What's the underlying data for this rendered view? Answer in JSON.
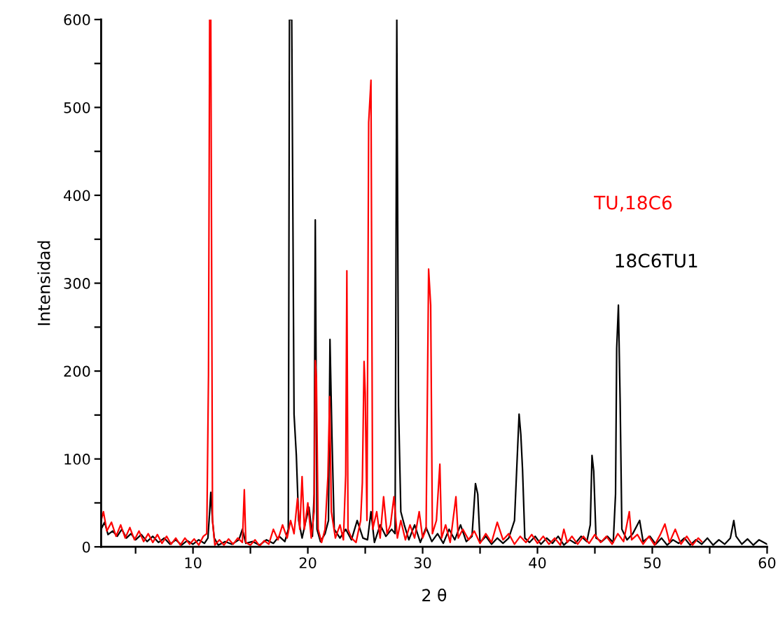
{
  "chart_data": {
    "type": "line",
    "xlabel": "2 θ",
    "ylabel": "Intensidad",
    "xlim": [
      2,
      60
    ],
    "ylim": [
      0,
      600
    ],
    "xticks": [
      {
        "value": 5,
        "label": null
      },
      10,
      {
        "value": 15,
        "label": null
      },
      20,
      {
        "value": 25,
        "label": null
      },
      30,
      {
        "value": 35,
        "label": null
      },
      40,
      {
        "value": 45,
        "label": null
      },
      50,
      {
        "value": 55,
        "label": null
      },
      60
    ],
    "yticks": [
      0,
      {
        "value": 50,
        "label": null
      },
      100,
      {
        "value": 150,
        "label": null
      },
      200,
      {
        "value": 250,
        "label": null
      },
      300,
      {
        "value": 350,
        "label": null
      },
      400,
      {
        "value": 450,
        "label": null
      },
      500,
      {
        "value": 550,
        "label": null
      },
      600
    ],
    "grid": false,
    "legend": false,
    "marker": "none",
    "line_style": "solid",
    "series": [
      {
        "name": "18C6TU1",
        "color": "#000000",
        "x": [
          2.0,
          2.3,
          2.6,
          3.0,
          3.4,
          3.8,
          4.2,
          4.6,
          5.0,
          5.5,
          6.0,
          6.5,
          7.0,
          7.5,
          8.0,
          8.5,
          9.0,
          9.5,
          10.0,
          10.5,
          11.0,
          11.3,
          11.45,
          11.55,
          11.7,
          11.85,
          12.2,
          12.8,
          13.4,
          14.0,
          14.3,
          14.6,
          15.2,
          15.8,
          16.4,
          17.0,
          17.5,
          18.0,
          18.3,
          18.4,
          18.6,
          18.8,
          19.0,
          19.2,
          19.5,
          19.8,
          20.1,
          20.4,
          20.55,
          20.65,
          20.8,
          21.1,
          21.5,
          21.8,
          21.93,
          22.1,
          22.3,
          22.8,
          23.3,
          23.8,
          24.3,
          24.8,
          25.2,
          25.5,
          25.8,
          26.3,
          26.8,
          27.3,
          27.6,
          27.75,
          27.9,
          28.1,
          28.4,
          28.8,
          29.3,
          29.8,
          30.3,
          30.8,
          31.3,
          31.8,
          32.3,
          32.8,
          33.3,
          33.8,
          34.3,
          34.6,
          34.8,
          35.0,
          35.5,
          36.0,
          36.5,
          37.0,
          37.5,
          38.0,
          38.4,
          38.55,
          38.7,
          38.9,
          39.3,
          39.8,
          40.3,
          40.8,
          41.3,
          41.8,
          42.3,
          42.8,
          43.3,
          43.8,
          44.3,
          44.6,
          44.75,
          44.9,
          45.1,
          45.6,
          46.1,
          46.6,
          46.8,
          46.9,
          47.05,
          47.2,
          47.35,
          47.8,
          48.3,
          48.9,
          49.2,
          49.8,
          50.3,
          50.8,
          51.3,
          51.8,
          52.3,
          52.8,
          53.3,
          53.8,
          54.3,
          54.8,
          55.3,
          55.8,
          56.3,
          56.8,
          57.1,
          57.3,
          57.8,
          58.3,
          58.8,
          59.3,
          60.0
        ],
        "values": [
          20,
          28,
          14,
          18,
          12,
          20,
          10,
          15,
          8,
          14,
          6,
          12,
          5,
          10,
          3,
          8,
          2,
          7,
          3,
          8,
          4,
          10,
          40,
          62,
          30,
          10,
          2,
          6,
          3,
          8,
          20,
          4,
          6,
          2,
          8,
          4,
          12,
          6,
          20,
          600,
          600,
          151,
          104,
          30,
          10,
          28,
          45,
          12,
          60,
          372,
          20,
          6,
          15,
          30,
          236,
          127,
          20,
          10,
          20,
          8,
          30,
          10,
          8,
          40,
          5,
          25,
          12,
          20,
          15,
          600,
          160,
          40,
          25,
          8,
          25,
          5,
          22,
          6,
          15,
          4,
          20,
          8,
          25,
          6,
          12,
          72,
          60,
          5,
          12,
          3,
          10,
          4,
          10,
          30,
          151,
          128,
          88,
          10,
          5,
          12,
          3,
          10,
          4,
          12,
          2,
          8,
          4,
          12,
          6,
          25,
          104,
          86,
          10,
          6,
          12,
          5,
          60,
          226,
          275,
          166,
          20,
          8,
          15,
          30,
          6,
          12,
          3,
          10,
          2,
          8,
          4,
          10,
          2,
          8,
          3,
          10,
          2,
          8,
          3,
          10,
          30,
          12,
          3,
          9,
          2,
          8,
          3
        ]
      },
      {
        "name": "TU‚18C6",
        "color": "#ff0000",
        "x": [
          2.0,
          2.2,
          2.5,
          2.9,
          3.3,
          3.7,
          4.1,
          4.5,
          4.9,
          5.3,
          5.7,
          6.1,
          6.5,
          6.9,
          7.3,
          7.7,
          8.1,
          8.5,
          8.9,
          9.3,
          9.7,
          10.1,
          10.5,
          10.9,
          11.2,
          11.35,
          11.45,
          11.55,
          11.7,
          11.9,
          12.3,
          12.7,
          13.1,
          13.5,
          13.9,
          14.3,
          14.47,
          14.6,
          15.0,
          15.4,
          15.8,
          16.2,
          16.6,
          17.0,
          17.4,
          17.8,
          18.2,
          18.5,
          18.8,
          19.1,
          19.3,
          19.5,
          19.7,
          20.0,
          20.3,
          20.55,
          20.65,
          20.75,
          20.9,
          21.2,
          21.5,
          21.75,
          21.9,
          22.05,
          22.4,
          22.8,
          23.1,
          23.3,
          23.4,
          23.5,
          23.8,
          24.2,
          24.6,
          24.75,
          24.9,
          25.0,
          25.15,
          25.3,
          25.5,
          25.65,
          26.0,
          26.3,
          26.6,
          26.9,
          27.2,
          27.5,
          27.8,
          28.1,
          28.5,
          28.9,
          29.3,
          29.7,
          30.0,
          30.3,
          30.52,
          30.7,
          30.85,
          31.2,
          31.5,
          31.65,
          32.0,
          32.4,
          32.9,
          33.1,
          33.5,
          34.0,
          34.5,
          35.0,
          35.5,
          36.0,
          36.5,
          37.0,
          37.5,
          38.0,
          38.5,
          39.0,
          39.5,
          40.0,
          40.5,
          41.0,
          41.5,
          42.0,
          42.3,
          42.6,
          43.0,
          43.5,
          44.0,
          44.5,
          45.0,
          45.5,
          46.0,
          46.5,
          47.0,
          47.5,
          48.0,
          48.2,
          48.7,
          49.2,
          49.7,
          50.2,
          50.7,
          51.1,
          51.5,
          52.0,
          52.5,
          53.0,
          53.5,
          54.0,
          54.3
        ],
        "values": [
          30,
          40,
          18,
          28,
          12,
          25,
          10,
          22,
          8,
          18,
          6,
          15,
          5,
          14,
          4,
          12,
          3,
          10,
          2,
          10,
          3,
          9,
          2,
          12,
          15,
          196,
          600,
          600,
          30,
          2,
          8,
          2,
          9,
          3,
          10,
          5,
          65,
          5,
          2,
          8,
          1,
          7,
          3,
          20,
          8,
          25,
          10,
          30,
          15,
          55,
          20,
          80,
          20,
          50,
          10,
          40,
          212,
          192,
          20,
          5,
          20,
          80,
          171,
          40,
          10,
          25,
          8,
          82,
          314,
          20,
          10,
          5,
          30,
          73,
          211,
          175,
          30,
          483,
          531,
          20,
          40,
          10,
          57,
          15,
          25,
          57,
          10,
          30,
          8,
          25,
          10,
          40,
          10,
          20,
          316,
          275,
          15,
          30,
          94,
          10,
          25,
          5,
          57,
          10,
          20,
          8,
          18,
          4,
          15,
          5,
          28,
          8,
          15,
          3,
          12,
          5,
          14,
          4,
          12,
          3,
          10,
          2,
          20,
          5,
          12,
          3,
          12,
          4,
          14,
          5,
          12,
          3,
          15,
          6,
          40,
          8,
          14,
          3,
          12,
          2,
          14,
          26,
          5,
          20,
          3,
          12,
          2,
          10,
          6
        ]
      }
    ]
  }
}
